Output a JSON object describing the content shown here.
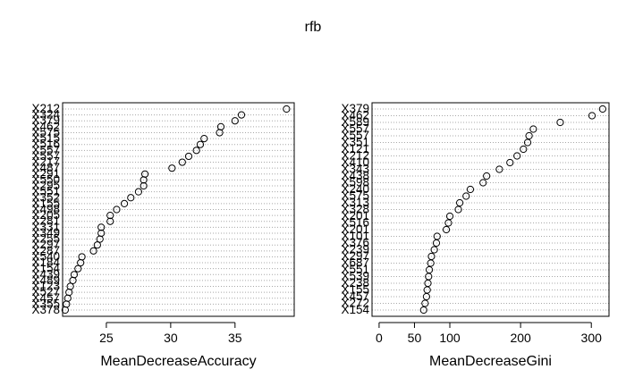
{
  "title": "rfb",
  "chart_data": [
    {
      "type": "scatter",
      "title": "",
      "xlabel": "MeanDecreaseAccuracy",
      "ylabel": "",
      "xlim": [
        21.6,
        39.6
      ],
      "xticks": [
        25,
        30,
        35
      ],
      "labels": [
        "X212",
        "X324",
        "X379",
        "X462",
        "X575",
        "X515",
        "X516",
        "X557",
        "X557",
        "X217",
        "X487",
        "X291",
        "X550",
        "X295",
        "X551",
        "X352",
        "X155",
        "X498",
        "X205",
        "X281",
        "X331",
        "X349",
        "X255",
        "X297",
        "X287",
        "X540",
        "X184",
        "X154",
        "X439",
        "X489",
        "X123",
        "X527",
        "X457",
        "X355",
        "X378"
      ],
      "values": [
        39.0,
        35.5,
        35.0,
        33.9,
        33.8,
        32.6,
        32.3,
        32.0,
        31.4,
        30.9,
        30.1,
        28.0,
        27.9,
        27.9,
        27.5,
        26.9,
        26.4,
        25.8,
        25.3,
        25.3,
        24.6,
        24.6,
        24.5,
        24.3,
        24.0,
        23.1,
        23.0,
        22.8,
        22.5,
        22.4,
        22.2,
        22.1,
        22.0,
        21.9,
        21.8
      ]
    },
    {
      "type": "scatter",
      "title": "",
      "xlabel": "MeanDecreaseGini",
      "ylabel": "",
      "xlim": [
        -10,
        325
      ],
      "xticks": [
        0,
        50,
        100,
        200,
        300
      ],
      "labels": [
        "X379",
        "X462",
        "X589",
        "X557",
        "X557",
        "X351",
        "X121",
        "X212",
        "X410",
        "X343",
        "X438",
        "X598",
        "X240",
        "X575",
        "X313",
        "X328",
        "X201",
        "X516",
        "X201",
        "X101",
        "X376",
        "X239",
        "X297",
        "X687",
        "X551",
        "X539",
        "X238",
        "X155",
        "X457",
        "X272",
        "X154"
      ],
      "values": [
        316,
        301,
        256,
        218,
        212,
        210,
        204,
        195,
        185,
        170,
        152,
        147,
        129,
        123,
        114,
        112,
        100,
        98,
        95,
        82,
        81,
        78,
        74,
        73,
        71,
        70,
        69,
        68,
        67,
        65,
        63
      ]
    }
  ]
}
